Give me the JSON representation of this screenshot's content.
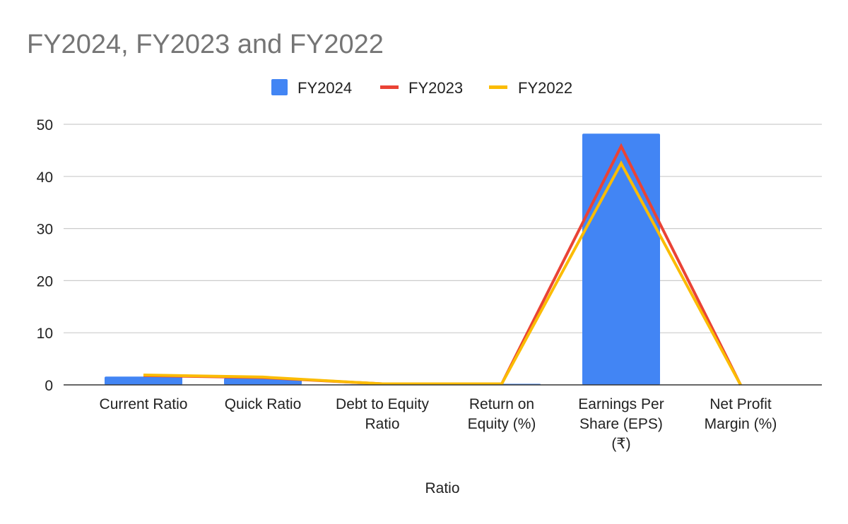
{
  "chart_data": {
    "type": "bar",
    "title": "FY2024, FY2023 and FY2022",
    "xlabel": "Ratio",
    "ylabel": "",
    "ylim": [
      0,
      50
    ],
    "yticks": [
      0,
      10,
      20,
      30,
      40,
      50
    ],
    "grid": true,
    "legend_position": "top",
    "categories": [
      [
        "Current Ratio"
      ],
      [
        "Quick Ratio"
      ],
      [
        "Debt to Equity",
        "Ratio"
      ],
      [
        "Return on",
        "Equity (%)"
      ],
      [
        "Earnings Per",
        "Share (EPS)",
        "(₹)"
      ],
      [
        "Net Profit",
        "Margin (%)"
      ]
    ],
    "series": [
      {
        "name": "FY2024",
        "kind": "bar",
        "color": "#4285f4",
        "values": [
          1.6,
          1.3,
          0.1,
          0.2,
          48.2,
          0
        ]
      },
      {
        "name": "FY2023",
        "kind": "line",
        "color": "#ea4335",
        "values": [
          1.8,
          1.4,
          0.2,
          0.2,
          45.8,
          0
        ]
      },
      {
        "name": "FY2022",
        "kind": "line",
        "color": "#fbbc04",
        "values": [
          1.9,
          1.5,
          0.2,
          0.2,
          42.5,
          0
        ]
      }
    ]
  }
}
